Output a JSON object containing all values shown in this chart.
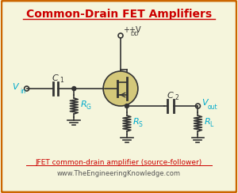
{
  "title": "Common-Drain FET Amplifiers",
  "title_color": "#cc0000",
  "bg_color": "#f5f5dc",
  "border_color": "#cc6600",
  "caption": "JFET common-drain amplifier (source-follower)",
  "website": "www.TheEngineeringKnowledge.com",
  "vdd_label": "+V",
  "vdd_sub": "DD",
  "vin_label": "V",
  "vin_sub": "in",
  "vout_label": "V",
  "vout_sub": "out",
  "c1_label": "C",
  "c1_sub": "1",
  "c2_label": "C",
  "c2_sub": "2",
  "rg_label": "R",
  "rg_sub": "G",
  "rs_label": "R",
  "rs_sub": "S",
  "rl_label": "R",
  "rl_sub": "L",
  "circuit_color": "#333333",
  "label_color": "#00aacc",
  "transistor_fill": "#d4c87a",
  "transistor_border": "#333333"
}
